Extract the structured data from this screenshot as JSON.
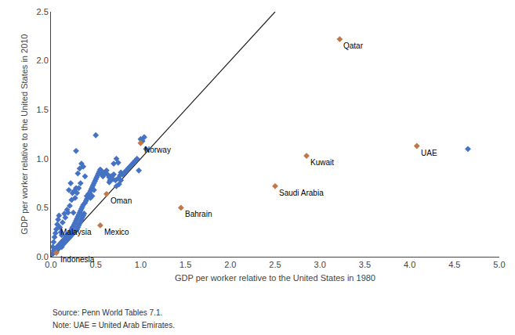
{
  "chart_data": {
    "type": "scatter",
    "xlabel": "GDP per worker relative to the United States in 1980",
    "ylabel": "GDP per worker relative to the United States in 2010",
    "source": "Source: Penn World Tables 7.1.",
    "note": "Note: UAE = United Arab Emirates.",
    "xlim": [
      0,
      5.0
    ],
    "ylim": [
      0,
      2.5
    ],
    "xticks": [
      {
        "value": 0.0,
        "label": "0.0"
      },
      0.5,
      {
        "value": 1.0,
        "label": "1.0"
      },
      1.5,
      {
        "value": 2.0,
        "label": "2.0"
      },
      2.5,
      {
        "value": 3.0,
        "label": "3.0"
      },
      3.5,
      {
        "value": 4.0,
        "label": "4.0"
      },
      4.5,
      {
        "value": 5.0,
        "label": "5.0"
      }
    ],
    "yticks": [
      {
        "value": 0.0,
        "label": "0.0"
      },
      0.5,
      {
        "value": 1.0,
        "label": "1.0"
      },
      1.5,
      {
        "value": 2.0,
        "label": "2.0"
      },
      2.5
    ],
    "grid": false,
    "series": [
      {
        "type": "line",
        "color": "#1F1F1F",
        "line_style": "solid",
        "x": [
          0,
          2.5
        ],
        "values": [
          0,
          2.5
        ]
      },
      {
        "type": "scatter",
        "color": "#4472C4",
        "marker": "diamond",
        "x": [
          0.02,
          0.03,
          0.03,
          0.04,
          0.04,
          0.05,
          0.05,
          0.06,
          0.06,
          0.07,
          0.07,
          0.08,
          0.08,
          0.09,
          0.09,
          0.1,
          0.1,
          0.11,
          0.11,
          0.12,
          0.12,
          0.13,
          0.13,
          0.14,
          0.14,
          0.15,
          0.15,
          0.16,
          0.16,
          0.17,
          0.17,
          0.18,
          0.18,
          0.19,
          0.19,
          0.2,
          0.2,
          0.21,
          0.21,
          0.22,
          0.22,
          0.23,
          0.23,
          0.24,
          0.24,
          0.25,
          0.25,
          0.26,
          0.26,
          0.27,
          0.27,
          0.28,
          0.28,
          0.29,
          0.29,
          0.3,
          0.3,
          0.31,
          0.31,
          0.32,
          0.32,
          0.33,
          0.33,
          0.34,
          0.34,
          0.35,
          0.35,
          0.36,
          0.36,
          0.37,
          0.38,
          0.39,
          0.4,
          0.41,
          0.42,
          0.43,
          0.44,
          0.45,
          0.46,
          0.47,
          0.48,
          0.49,
          0.5,
          0.51,
          0.52,
          0.53,
          0.54,
          0.55,
          0.56,
          0.57,
          0.58,
          0.59,
          0.6,
          0.62,
          0.63,
          0.65,
          0.66,
          0.67,
          0.68,
          0.7,
          0.72,
          0.73,
          0.75,
          0.77,
          0.78,
          0.8,
          0.82,
          0.84,
          0.86,
          0.88,
          0.9,
          0.92,
          0.94,
          0.96,
          0.98,
          1.0,
          1.02,
          1.04,
          1.06,
          0.2,
          0.22,
          0.24,
          0.26,
          0.28,
          0.3,
          0.32,
          0.34,
          0.36,
          0.38,
          0.5,
          0.28,
          0.15,
          0.18,
          0.1,
          0.11,
          0.12,
          4.65,
          0.08,
          0.09,
          0.07,
          0.06,
          0.04,
          0.03,
          0.02,
          0.05,
          0.13,
          0.16,
          0.19,
          0.21,
          0.23,
          0.25,
          0.27,
          0.29,
          0.31,
          0.33,
          0.4,
          0.42,
          0.44,
          0.46,
          0.48,
          0.7,
          0.73,
          0.75,
          0.76,
          0.78,
          0.65,
          0.67,
          0.69
        ],
        "values": [
          0.03,
          0.04,
          0.06,
          0.05,
          0.07,
          0.06,
          0.08,
          0.05,
          0.09,
          0.07,
          0.1,
          0.08,
          0.11,
          0.09,
          0.12,
          0.1,
          0.13,
          0.11,
          0.14,
          0.1,
          0.15,
          0.12,
          0.16,
          0.13,
          0.17,
          0.14,
          0.18,
          0.15,
          0.19,
          0.16,
          0.21,
          0.17,
          0.22,
          0.18,
          0.23,
          0.19,
          0.24,
          0.2,
          0.25,
          0.21,
          0.26,
          0.22,
          0.28,
          0.23,
          0.3,
          0.24,
          0.31,
          0.25,
          0.33,
          0.26,
          0.35,
          0.27,
          0.37,
          0.28,
          0.39,
          0.3,
          0.41,
          0.32,
          0.43,
          0.34,
          0.45,
          0.36,
          0.47,
          0.38,
          0.49,
          0.4,
          0.51,
          0.42,
          0.53,
          0.44,
          0.55,
          0.57,
          0.59,
          0.61,
          0.63,
          0.65,
          0.67,
          0.69,
          0.71,
          0.73,
          0.75,
          0.77,
          0.79,
          0.81,
          0.83,
          0.85,
          0.87,
          0.89,
          0.85,
          0.87,
          0.82,
          0.84,
          0.86,
          0.88,
          0.84,
          0.76,
          0.78,
          0.8,
          0.82,
          0.84,
          0.78,
          0.72,
          0.8,
          0.83,
          0.86,
          0.84,
          0.86,
          0.88,
          0.9,
          0.92,
          0.94,
          0.96,
          0.98,
          1.0,
          0.88,
          1.2,
          1.18,
          1.22,
          1.1,
          0.68,
          0.75,
          0.65,
          0.67,
          0.7,
          0.85,
          0.9,
          0.95,
          0.92,
          0.82,
          1.24,
          1.08,
          0.44,
          0.48,
          0.3,
          0.25,
          0.22,
          1.1,
          0.38,
          0.42,
          0.33,
          0.28,
          0.2,
          0.15,
          0.1,
          0.24,
          0.35,
          0.4,
          0.45,
          0.52,
          0.58,
          0.45,
          0.6,
          0.65,
          0.7,
          0.75,
          0.62,
          0.64,
          0.6,
          0.62,
          0.68,
          0.95,
          1.0,
          0.96,
          0.74,
          0.78,
          0.81,
          0.82,
          0.79
        ]
      },
      {
        "type": "scatter",
        "color": "#C0774A",
        "marker": "diamond",
        "x": [
          0.06,
          0.55,
          0.62,
          1.0,
          1.45,
          2.5,
          3.22,
          2.85,
          4.08
        ],
        "values": [
          0.04,
          0.32,
          0.64,
          1.16,
          0.5,
          0.72,
          2.22,
          1.03,
          1.13
        ]
      }
    ],
    "annotations": [
      {
        "text": "Qatar",
        "x": 3.22,
        "y": 2.22
      },
      {
        "text": "Norway",
        "x": 1.0,
        "y": 1.16
      },
      {
        "text": "UAE",
        "x": 4.08,
        "y": 1.13
      },
      {
        "text": "Kuwait",
        "x": 2.85,
        "y": 1.03
      },
      {
        "text": "Saudi Arabia",
        "x": 2.5,
        "y": 0.72
      },
      {
        "text": "Bahrain",
        "x": 1.45,
        "y": 0.5
      },
      {
        "text": "Oman",
        "x": 0.62,
        "y": 0.64
      },
      {
        "text": "Mexico",
        "x": 0.55,
        "y": 0.32
      },
      {
        "text": "Malaysia",
        "x": 0.06,
        "y": 0.32
      },
      {
        "text": "Indonesia",
        "x": 0.06,
        "y": 0.04
      }
    ]
  }
}
